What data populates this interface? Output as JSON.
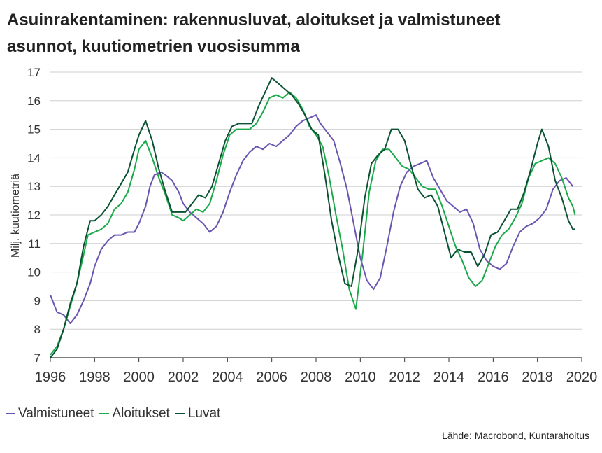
{
  "title_line1": "Asuinrakentaminen: rakennusluvat, aloitukset ja valmistuneet",
  "title_line2": "asunnot, kuutiometrien vuosisumma",
  "source": "Lähde: Macrobond, Kuntarahoitus",
  "chart_data": {
    "type": "line",
    "ylabel": "Milj. kuutiometriä",
    "xlabel": "",
    "xlim": [
      1996,
      2020
    ],
    "ylim": [
      7,
      17
    ],
    "x_ticks": [
      1996,
      1998,
      2000,
      2002,
      2004,
      2006,
      2008,
      2010,
      2012,
      2014,
      2016,
      2018,
      2020
    ],
    "y_ticks": [
      7,
      8,
      9,
      10,
      11,
      12,
      13,
      14,
      15,
      16,
      17
    ],
    "grid": "horizontal",
    "legend_position": "bottom-left",
    "series": [
      {
        "name": "Valmistuneet",
        "color": "#6a55b0",
        "points": [
          [
            1996.0,
            9.2
          ],
          [
            1996.3,
            8.6
          ],
          [
            1996.6,
            8.5
          ],
          [
            1996.9,
            8.2
          ],
          [
            1997.2,
            8.5
          ],
          [
            1997.5,
            9.0
          ],
          [
            1997.8,
            9.6
          ],
          [
            1998.0,
            10.2
          ],
          [
            1998.3,
            10.8
          ],
          [
            1998.6,
            11.1
          ],
          [
            1998.9,
            11.3
          ],
          [
            1999.2,
            11.3
          ],
          [
            1999.5,
            11.4
          ],
          [
            1999.8,
            11.4
          ],
          [
            2000.0,
            11.7
          ],
          [
            2000.3,
            12.3
          ],
          [
            2000.5,
            13.0
          ],
          [
            2000.7,
            13.4
          ],
          [
            2001.0,
            13.5
          ],
          [
            2001.2,
            13.4
          ],
          [
            2001.5,
            13.2
          ],
          [
            2001.8,
            12.8
          ],
          [
            2002.0,
            12.4
          ],
          [
            2002.3,
            12.1
          ],
          [
            2002.6,
            11.9
          ],
          [
            2002.9,
            11.7
          ],
          [
            2003.2,
            11.4
          ],
          [
            2003.5,
            11.6
          ],
          [
            2003.8,
            12.1
          ],
          [
            2004.1,
            12.8
          ],
          [
            2004.4,
            13.4
          ],
          [
            2004.7,
            13.9
          ],
          [
            2005.0,
            14.2
          ],
          [
            2005.3,
            14.4
          ],
          [
            2005.6,
            14.3
          ],
          [
            2005.9,
            14.5
          ],
          [
            2006.2,
            14.4
          ],
          [
            2006.5,
            14.6
          ],
          [
            2006.8,
            14.8
          ],
          [
            2007.1,
            15.1
          ],
          [
            2007.4,
            15.3
          ],
          [
            2007.7,
            15.4
          ],
          [
            2008.0,
            15.5
          ],
          [
            2008.2,
            15.2
          ],
          [
            2008.5,
            14.9
          ],
          [
            2008.8,
            14.6
          ],
          [
            2009.1,
            13.8
          ],
          [
            2009.4,
            12.9
          ],
          [
            2009.7,
            11.7
          ],
          [
            2010.0,
            10.5
          ],
          [
            2010.3,
            9.7
          ],
          [
            2010.6,
            9.4
          ],
          [
            2010.9,
            9.8
          ],
          [
            2011.2,
            10.9
          ],
          [
            2011.5,
            12.1
          ],
          [
            2011.8,
            13.0
          ],
          [
            2012.1,
            13.5
          ],
          [
            2012.4,
            13.7
          ],
          [
            2012.7,
            13.8
          ],
          [
            2013.0,
            13.9
          ],
          [
            2013.3,
            13.3
          ],
          [
            2013.6,
            12.9
          ],
          [
            2013.9,
            12.5
          ],
          [
            2014.2,
            12.3
          ],
          [
            2014.5,
            12.1
          ],
          [
            2014.8,
            12.2
          ],
          [
            2015.1,
            11.7
          ],
          [
            2015.4,
            10.8
          ],
          [
            2015.7,
            10.4
          ],
          [
            2016.0,
            10.2
          ],
          [
            2016.3,
            10.1
          ],
          [
            2016.6,
            10.3
          ],
          [
            2016.9,
            10.9
          ],
          [
            2017.2,
            11.4
          ],
          [
            2017.5,
            11.6
          ],
          [
            2017.8,
            11.7
          ],
          [
            2018.1,
            11.9
          ],
          [
            2018.4,
            12.2
          ],
          [
            2018.7,
            12.9
          ],
          [
            2019.0,
            13.2
          ],
          [
            2019.3,
            13.3
          ],
          [
            2019.6,
            13.0
          ]
        ]
      },
      {
        "name": "Aloitukset",
        "color": "#1aaa4a",
        "points": [
          [
            1996.0,
            7.1
          ],
          [
            1996.3,
            7.4
          ],
          [
            1996.6,
            8.0
          ],
          [
            1996.9,
            8.8
          ],
          [
            1997.2,
            9.6
          ],
          [
            1997.5,
            10.6
          ],
          [
            1997.7,
            11.3
          ],
          [
            1998.0,
            11.4
          ],
          [
            1998.3,
            11.5
          ],
          [
            1998.6,
            11.7
          ],
          [
            1998.9,
            12.2
          ],
          [
            1999.2,
            12.4
          ],
          [
            1999.5,
            12.8
          ],
          [
            1999.8,
            13.6
          ],
          [
            2000.0,
            14.3
          ],
          [
            2000.3,
            14.6
          ],
          [
            2000.6,
            14.0
          ],
          [
            2000.9,
            13.3
          ],
          [
            2001.2,
            12.7
          ],
          [
            2001.5,
            12.0
          ],
          [
            2001.8,
            11.9
          ],
          [
            2002.0,
            11.8
          ],
          [
            2002.3,
            12.0
          ],
          [
            2002.6,
            12.2
          ],
          [
            2002.9,
            12.1
          ],
          [
            2003.2,
            12.4
          ],
          [
            2003.5,
            13.2
          ],
          [
            2003.8,
            14.1
          ],
          [
            2004.1,
            14.8
          ],
          [
            2004.4,
            15.0
          ],
          [
            2004.7,
            15.0
          ],
          [
            2005.0,
            15.0
          ],
          [
            2005.3,
            15.2
          ],
          [
            2005.6,
            15.6
          ],
          [
            2005.9,
            16.1
          ],
          [
            2006.2,
            16.2
          ],
          [
            2006.5,
            16.1
          ],
          [
            2006.8,
            16.3
          ],
          [
            2007.1,
            16.1
          ],
          [
            2007.4,
            15.7
          ],
          [
            2007.7,
            15.1
          ],
          [
            2008.0,
            14.8
          ],
          [
            2008.3,
            14.4
          ],
          [
            2008.6,
            13.3
          ],
          [
            2008.9,
            12.0
          ],
          [
            2009.2,
            10.8
          ],
          [
            2009.5,
            9.4
          ],
          [
            2009.8,
            8.7
          ],
          [
            2010.1,
            10.6
          ],
          [
            2010.4,
            12.8
          ],
          [
            2010.7,
            13.9
          ],
          [
            2011.0,
            14.3
          ],
          [
            2011.3,
            14.3
          ],
          [
            2011.6,
            14.0
          ],
          [
            2011.9,
            13.7
          ],
          [
            2012.2,
            13.6
          ],
          [
            2012.5,
            13.3
          ],
          [
            2012.8,
            13.0
          ],
          [
            2013.1,
            12.9
          ],
          [
            2013.4,
            12.9
          ],
          [
            2013.7,
            12.3
          ],
          [
            2014.0,
            11.6
          ],
          [
            2014.3,
            10.9
          ],
          [
            2014.6,
            10.4
          ],
          [
            2014.9,
            9.8
          ],
          [
            2015.2,
            9.5
          ],
          [
            2015.5,
            9.7
          ],
          [
            2015.8,
            10.3
          ],
          [
            2016.1,
            10.9
          ],
          [
            2016.4,
            11.3
          ],
          [
            2016.7,
            11.5
          ],
          [
            2017.0,
            11.9
          ],
          [
            2017.3,
            12.4
          ],
          [
            2017.6,
            13.3
          ],
          [
            2017.9,
            13.8
          ],
          [
            2018.2,
            13.9
          ],
          [
            2018.5,
            14.0
          ],
          [
            2018.8,
            13.8
          ],
          [
            2019.1,
            13.3
          ],
          [
            2019.4,
            12.6
          ],
          [
            2019.6,
            12.3
          ],
          [
            2019.7,
            12.0
          ]
        ]
      },
      {
        "name": "Luvat",
        "color": "#0b5233",
        "points": [
          [
            1996.0,
            7.0
          ],
          [
            1996.3,
            7.3
          ],
          [
            1996.6,
            8.0
          ],
          [
            1996.9,
            8.9
          ],
          [
            1997.2,
            9.6
          ],
          [
            1997.5,
            10.9
          ],
          [
            1997.8,
            11.8
          ],
          [
            1998.0,
            11.8
          ],
          [
            1998.3,
            12.0
          ],
          [
            1998.6,
            12.3
          ],
          [
            1998.9,
            12.7
          ],
          [
            1999.2,
            13.1
          ],
          [
            1999.5,
            13.5
          ],
          [
            1999.8,
            14.3
          ],
          [
            2000.0,
            14.8
          ],
          [
            2000.3,
            15.3
          ],
          [
            2000.6,
            14.6
          ],
          [
            2000.9,
            13.6
          ],
          [
            2001.2,
            12.8
          ],
          [
            2001.5,
            12.1
          ],
          [
            2001.8,
            12.1
          ],
          [
            2002.1,
            12.1
          ],
          [
            2002.4,
            12.4
          ],
          [
            2002.7,
            12.7
          ],
          [
            2003.0,
            12.6
          ],
          [
            2003.3,
            13.0
          ],
          [
            2003.6,
            13.8
          ],
          [
            2003.9,
            14.6
          ],
          [
            2004.2,
            15.1
          ],
          [
            2004.5,
            15.2
          ],
          [
            2004.8,
            15.2
          ],
          [
            2005.1,
            15.2
          ],
          [
            2005.4,
            15.8
          ],
          [
            2005.7,
            16.3
          ],
          [
            2006.0,
            16.8
          ],
          [
            2006.3,
            16.6
          ],
          [
            2006.6,
            16.4
          ],
          [
            2006.9,
            16.2
          ],
          [
            2007.2,
            15.9
          ],
          [
            2007.5,
            15.5
          ],
          [
            2007.8,
            15.0
          ],
          [
            2008.1,
            14.8
          ],
          [
            2008.4,
            13.4
          ],
          [
            2008.7,
            11.8
          ],
          [
            2009.0,
            10.6
          ],
          [
            2009.3,
            9.6
          ],
          [
            2009.6,
            9.5
          ],
          [
            2009.9,
            10.8
          ],
          [
            2010.2,
            12.6
          ],
          [
            2010.5,
            13.8
          ],
          [
            2010.8,
            14.1
          ],
          [
            2011.1,
            14.3
          ],
          [
            2011.4,
            15.0
          ],
          [
            2011.7,
            15.0
          ],
          [
            2012.0,
            14.6
          ],
          [
            2012.3,
            13.7
          ],
          [
            2012.6,
            12.9
          ],
          [
            2012.9,
            12.6
          ],
          [
            2013.2,
            12.7
          ],
          [
            2013.5,
            12.3
          ],
          [
            2013.8,
            11.4
          ],
          [
            2014.1,
            10.5
          ],
          [
            2014.4,
            10.8
          ],
          [
            2014.7,
            10.7
          ],
          [
            2015.0,
            10.7
          ],
          [
            2015.3,
            10.2
          ],
          [
            2015.6,
            10.6
          ],
          [
            2015.9,
            11.3
          ],
          [
            2016.2,
            11.4
          ],
          [
            2016.5,
            11.8
          ],
          [
            2016.8,
            12.2
          ],
          [
            2017.1,
            12.2
          ],
          [
            2017.4,
            12.8
          ],
          [
            2017.7,
            13.6
          ],
          [
            2018.0,
            14.5
          ],
          [
            2018.2,
            15.0
          ],
          [
            2018.5,
            14.4
          ],
          [
            2018.8,
            13.2
          ],
          [
            2019.1,
            12.6
          ],
          [
            2019.4,
            11.8
          ],
          [
            2019.6,
            11.5
          ],
          [
            2019.7,
            11.5
          ]
        ]
      }
    ]
  }
}
